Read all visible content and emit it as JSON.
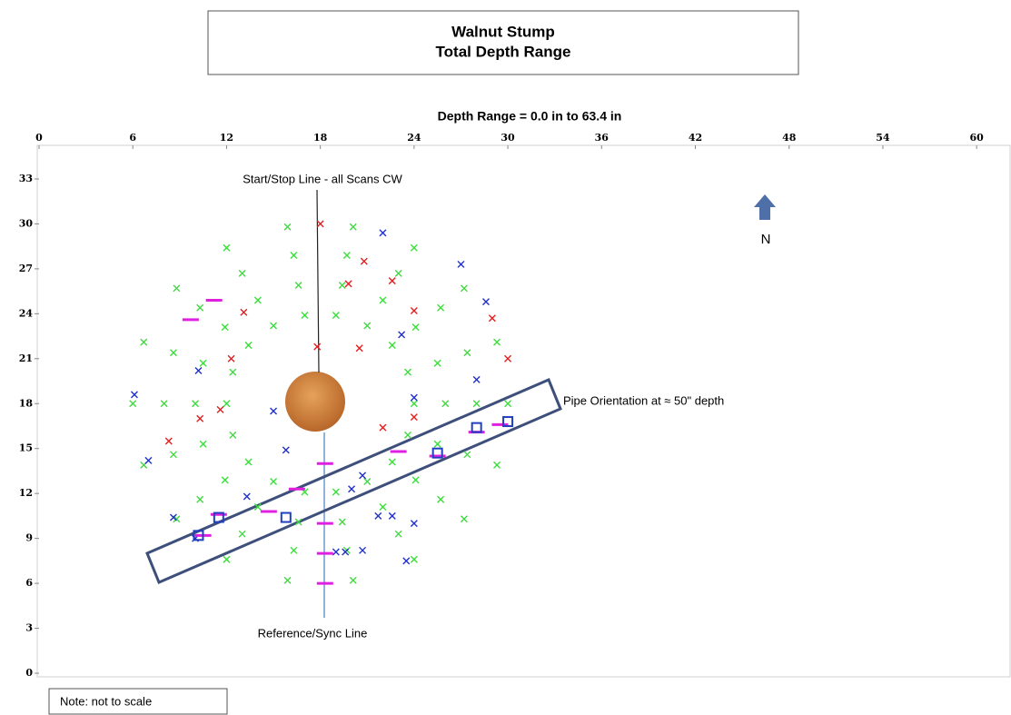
{
  "chart_data": {
    "type": "scatter",
    "title": "Walnut Stump",
    "subtitle": "Total Depth Range",
    "x_label": "Depth Range = 0.0 in to 63.4 in",
    "annotations": [
      "Start/Stop Line - all Scans CW",
      "Pipe Orientation at ≈ 50\" depth",
      "Reference/Sync Line",
      "N",
      "Note:  not to scale"
    ],
    "xlim": [
      0,
      62.2
    ],
    "ylim": [
      0,
      35
    ],
    "xticks": [
      0,
      6,
      12,
      18,
      24,
      30,
      36,
      42,
      48,
      54,
      60
    ],
    "yticks": [
      0,
      3,
      6,
      9,
      12,
      15,
      18,
      21,
      24,
      27,
      30,
      33
    ],
    "series": [
      {
        "color": "#3ddc3d",
        "marker": "x",
        "x": [
          24,
          23.6,
          22.6,
          21,
          19,
          17,
          15,
          13.4,
          12.4,
          12,
          12.4,
          13.4,
          15,
          17,
          19,
          21,
          22.6,
          23.6,
          26,
          25.5,
          24.1,
          22,
          19.4,
          16.6,
          14,
          11.9,
          10.5,
          10,
          10.5,
          11.9,
          14,
          16.6,
          19.4,
          22,
          24.1,
          25.5,
          28,
          27.4,
          25.7,
          23,
          19.7,
          16.3,
          13,
          10.3,
          8.6,
          8,
          8.6,
          10.3,
          13,
          16.3,
          19.7,
          23,
          25.7,
          27.4,
          30,
          29.3,
          27.2,
          24,
          20.1,
          15.9,
          12,
          8.8,
          6.7,
          6,
          6.7,
          8.8,
          12,
          15.9,
          20.1,
          24,
          27.2,
          29.3
        ],
        "values": [
          18,
          20.1,
          21.9,
          23.2,
          23.9,
          23.9,
          23.2,
          21.9,
          20.1,
          18,
          15.9,
          14.1,
          12.8,
          12.1,
          12.1,
          12.8,
          14.1,
          15.9,
          18,
          20.7,
          23.1,
          24.9,
          25.9,
          25.9,
          24.9,
          23.1,
          20.7,
          18,
          15.3,
          12.9,
          11.1,
          10.1,
          10.1,
          11.1,
          12.9,
          15.3,
          18,
          21.4,
          24.4,
          26.7,
          27.9,
          27.9,
          26.7,
          24.4,
          21.4,
          18,
          14.6,
          11.6,
          9.3,
          8.2,
          8.2,
          9.3,
          11.6,
          14.6,
          18,
          22.1,
          25.7,
          28.4,
          29.8,
          29.8,
          28.4,
          25.7,
          22.1,
          18,
          13.9,
          10.3,
          7.6,
          6.2,
          6.2,
          7.6,
          10.3,
          13.9
        ]
      },
      {
        "color": "#e02020",
        "marker": "x",
        "x": [
          18,
          20.8,
          19.8,
          22.6,
          17.8,
          20.5,
          24,
          29,
          30,
          13.1,
          12.3,
          11.6,
          10.3,
          8.3,
          22,
          24
        ],
        "values": [
          30,
          27.5,
          26,
          26.2,
          21.8,
          21.7,
          24.2,
          23.7,
          21,
          24.1,
          21,
          17.6,
          17,
          15.5,
          16.4,
          17.1
        ]
      },
      {
        "color": "#2030c8",
        "marker": "x",
        "x": [
          22,
          27,
          28.6,
          23.2,
          28,
          24,
          10.2,
          6.1,
          15,
          7,
          15.8,
          20.7,
          20,
          13.3,
          22.6,
          21.7,
          8.6,
          24,
          19,
          19.6,
          20.7,
          23.5,
          10
        ],
        "values": [
          29.4,
          27.3,
          24.8,
          22.6,
          19.6,
          18.4,
          20.2,
          18.6,
          17.5,
          14.2,
          14.9,
          13.2,
          12.3,
          11.8,
          10.5,
          10.5,
          10.4,
          10,
          8.1,
          8.1,
          8.2,
          7.5,
          9
        ]
      },
      {
        "color": "#e020e0",
        "marker": "dash",
        "x": [
          11.2,
          9.7,
          10.5,
          11.5,
          14.7,
          16.5,
          18.3,
          18.3,
          18.3,
          18.3,
          23,
          25.5,
          28,
          29.5
        ],
        "values": [
          24.9,
          23.6,
          9.2,
          10.6,
          10.8,
          12.3,
          14,
          10,
          8,
          6,
          14.8,
          14.5,
          16.1,
          16.6
        ]
      },
      {
        "color": "#2040c0",
        "marker": "square",
        "x": [
          10.2,
          11.5,
          15.8,
          25.5,
          28,
          30
        ],
        "values": [
          9.2,
          10.4,
          10.4,
          14.7,
          16.4,
          16.8
        ]
      }
    ]
  }
}
